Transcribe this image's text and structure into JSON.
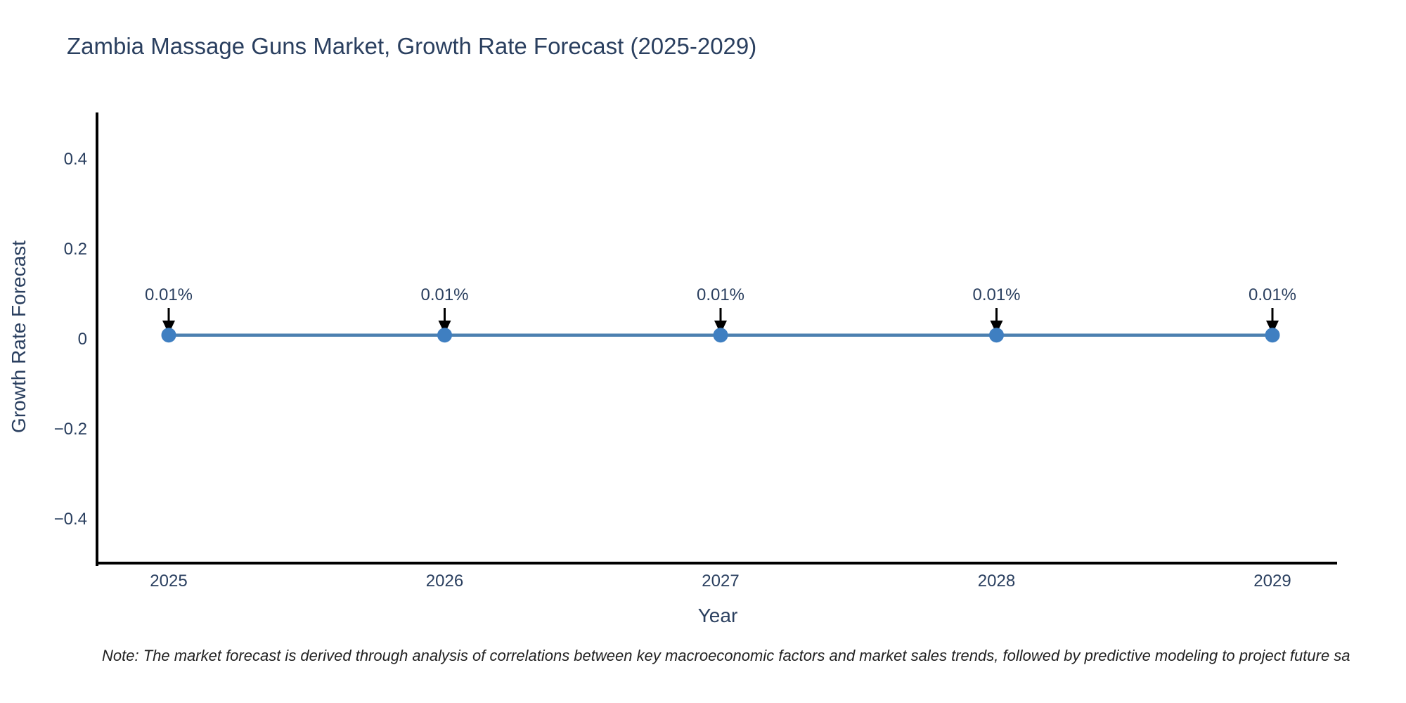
{
  "title": "Zambia Massage Guns Market, Growth Rate Forecast (2025-2029)",
  "note": "Note: The market forecast is derived through analysis of correlations between key macroeconomic factors and market sales trends, followed by predictive modeling to project future sa",
  "chart_data": {
    "type": "line",
    "title": "Zambia Massage Guns Market, Growth Rate Forecast (2025-2029)",
    "xlabel": "Year",
    "ylabel": "Growth Rate Forecast",
    "categories": [
      "2025",
      "2026",
      "2027",
      "2028",
      "2029"
    ],
    "series": [
      {
        "name": "Growth Rate Forecast",
        "values": [
          0.01,
          0.01,
          0.01,
          0.01,
          0.01
        ]
      }
    ],
    "data_labels": [
      "0.01%",
      "0.01%",
      "0.01%",
      "0.01%",
      "0.01%"
    ],
    "ylim": [
      -0.5,
      0.505
    ],
    "yticks": [
      0.4,
      0.2,
      0,
      -0.2,
      -0.4
    ],
    "ytick_labels": [
      "0.4",
      "0.2",
      "0",
      "−0.2",
      "−0.4"
    ],
    "grid": false,
    "legend": "none",
    "annotation_arrows": true,
    "colors": {
      "line": "#4c80b0",
      "marker": "#3f7fc1",
      "axis": "#000000",
      "text": "#2a3f5f",
      "arrow": "#000000",
      "note_text": "#222222",
      "background": "#ffffff"
    }
  }
}
